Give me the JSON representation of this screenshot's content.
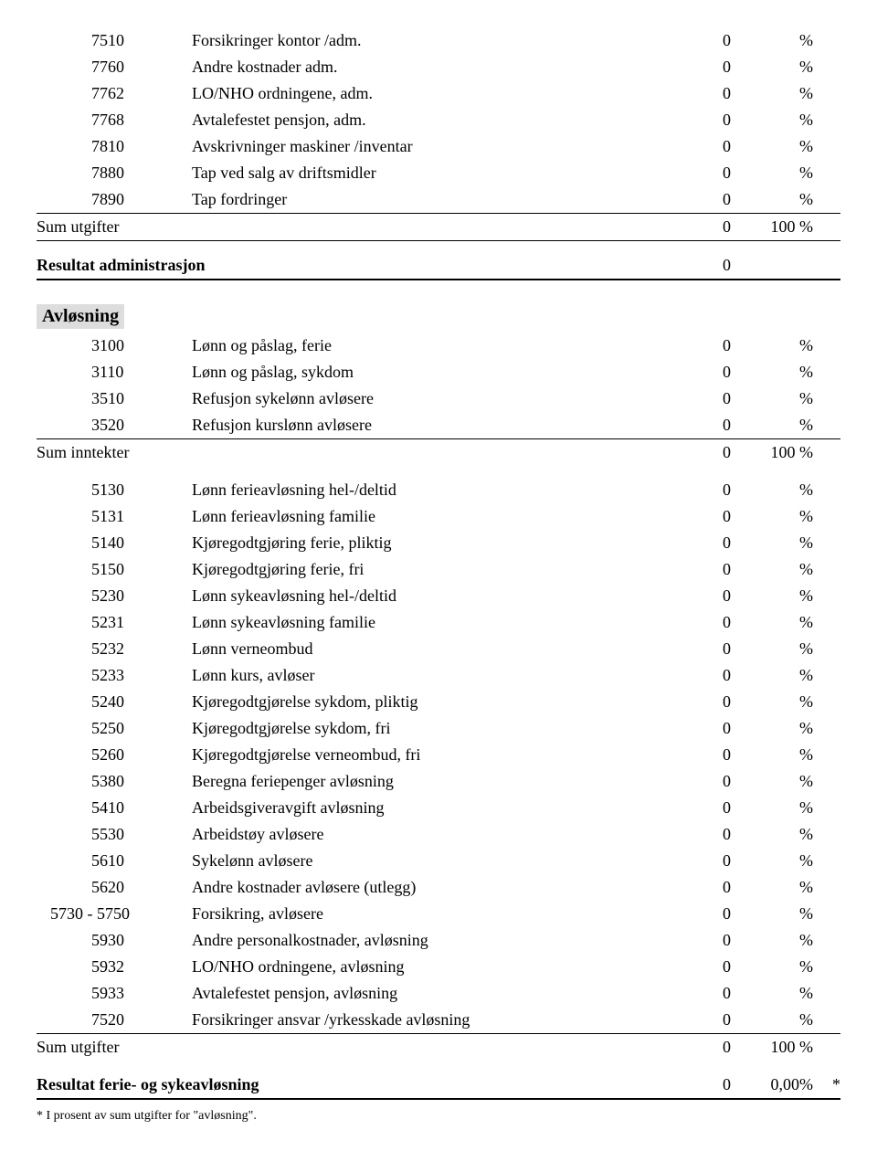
{
  "section1": {
    "rows": [
      {
        "code": "7510",
        "desc": "Forsikringer kontor /adm.",
        "val": "0",
        "pct": "%"
      },
      {
        "code": "7760",
        "desc": "Andre kostnader adm.",
        "val": "0",
        "pct": "%"
      },
      {
        "code": "7762",
        "desc": "LO/NHO ordningene, adm.",
        "val": "0",
        "pct": "%"
      },
      {
        "code": "7768",
        "desc": "Avtalefestet pensjon, adm.",
        "val": "0",
        "pct": "%"
      },
      {
        "code": "7810",
        "desc": "Avskrivninger maskiner /inventar",
        "val": "0",
        "pct": "%"
      },
      {
        "code": "7880",
        "desc": "Tap ved salg av driftsmidler",
        "val": "0",
        "pct": "%"
      },
      {
        "code": "7890",
        "desc": "Tap fordringer",
        "val": "0",
        "pct": "%"
      }
    ],
    "sum_label": "Sum utgifter",
    "sum_val": "0",
    "sum_pct": "100 %",
    "result_label": "Resultat administrasjon",
    "result_val": "0"
  },
  "section2": {
    "title": "Avløsning",
    "income_rows": [
      {
        "code": "3100",
        "desc": "Lønn og påslag, ferie",
        "val": "0",
        "pct": "%"
      },
      {
        "code": "3110",
        "desc": "Lønn og påslag, sykdom",
        "val": "0",
        "pct": "%"
      },
      {
        "code": "3510",
        "desc": "Refusjon sykelønn avløsere",
        "val": "0",
        "pct": "%"
      },
      {
        "code": "3520",
        "desc": "Refusjon kurslønn avløsere",
        "val": "0",
        "pct": "%"
      }
    ],
    "income_sum_label": "Sum inntekter",
    "income_sum_val": "0",
    "income_sum_pct": "100 %",
    "expense_rows": [
      {
        "code": "5130",
        "desc": "Lønn ferieavløsning hel-/deltid",
        "val": "0",
        "pct": "%"
      },
      {
        "code": "5131",
        "desc": "Lønn ferieavløsning familie",
        "val": "0",
        "pct": "%"
      },
      {
        "code": "5140",
        "desc": "Kjøregodtgjøring ferie, pliktig",
        "val": "0",
        "pct": "%"
      },
      {
        "code": "5150",
        "desc": "Kjøregodtgjøring ferie, fri",
        "val": "0",
        "pct": "%"
      },
      {
        "code": "5230",
        "desc": "Lønn sykeavløsning hel-/deltid",
        "val": "0",
        "pct": "%"
      },
      {
        "code": "5231",
        "desc": "Lønn sykeavløsning familie",
        "val": "0",
        "pct": "%"
      },
      {
        "code": "5232",
        "desc": "Lønn verneombud",
        "val": "0",
        "pct": "%"
      },
      {
        "code": "5233",
        "desc": "Lønn kurs, avløser",
        "val": "0",
        "pct": "%"
      },
      {
        "code": "5240",
        "desc": "Kjøregodtgjørelse sykdom, pliktig",
        "val": "0",
        "pct": "%"
      },
      {
        "code": "5250",
        "desc": "Kjøregodtgjørelse sykdom, fri",
        "val": "0",
        "pct": "%"
      },
      {
        "code": "5260",
        "desc": "Kjøregodtgjørelse verneombud, fri",
        "val": "0",
        "pct": "%"
      },
      {
        "code": "5380",
        "desc": "Beregna feriepenger avløsning",
        "val": "0",
        "pct": "%"
      },
      {
        "code": "5410",
        "desc": "Arbeidsgiveravgift avløsning",
        "val": "0",
        "pct": "%"
      },
      {
        "code": "5530",
        "desc": "Arbeidstøy avløsere",
        "val": "0",
        "pct": "%"
      },
      {
        "code": "5610",
        "desc": "Sykelønn avløsere",
        "val": "0",
        "pct": "%"
      },
      {
        "code": "5620",
        "desc": "Andre kostnader avløsere (utlegg)",
        "val": "0",
        "pct": "%"
      },
      {
        "code": "5730 - 5750",
        "desc": "Forsikring, avløsere",
        "val": "0",
        "pct": "%",
        "wide": true
      },
      {
        "code": "5930",
        "desc": "Andre personalkostnader, avløsning",
        "val": "0",
        "pct": "%"
      },
      {
        "code": "5932",
        "desc": "LO/NHO ordningene, avløsning",
        "val": "0",
        "pct": "%"
      },
      {
        "code": "5933",
        "desc": "Avtalefestet pensjon, avløsning",
        "val": "0",
        "pct": "%"
      },
      {
        "code": "7520",
        "desc": "Forsikringer ansvar /yrkesskade avløsning",
        "val": "0",
        "pct": "%"
      }
    ],
    "expense_sum_label": "Sum utgifter",
    "expense_sum_val": "0",
    "expense_sum_pct": "100 %",
    "result_label": "Resultat ferie- og sykeavløsning",
    "result_val": "0",
    "result_pct": "0,00%",
    "result_star": "*"
  },
  "footnote": "* I prosent av sum utgifter for \"avløsning\"."
}
